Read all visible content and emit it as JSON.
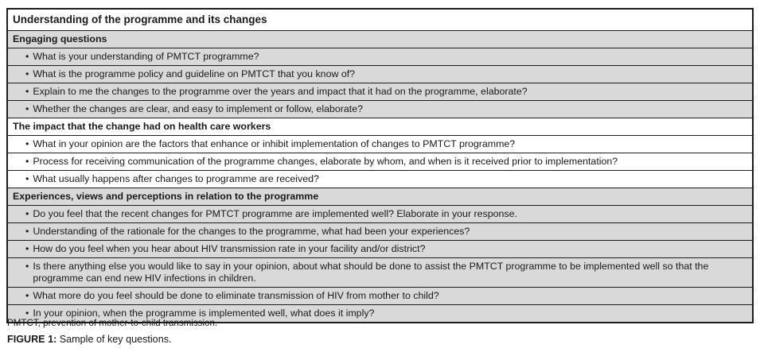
{
  "figure": {
    "title": "Understanding of the programme and its changes",
    "sections": [
      {
        "header": "Engaging questions",
        "shaded": true,
        "questions": [
          "What is your understanding of PMTCT programme?",
          "What is the programme policy and guideline on PMTCT that you know of?",
          "Explain to me the changes to the programme over the years and impact that it had on the programme, elaborate?",
          "Whether the changes are clear, and easy to implement or follow, elaborate?"
        ]
      },
      {
        "header": "The impact that the change had on health care workers",
        "shaded": false,
        "questions": [
          "What in your opinion are the factors that enhance or inhibit implementation of changes to PMTCT programme?",
          "Process for receiving communication of the programme changes, elaborate by whom, and when is it received prior to implementation?",
          "What usually happens after changes to programme are received?"
        ]
      },
      {
        "header": "Experiences, views and perceptions in relation to the programme",
        "shaded": true,
        "questions": [
          "Do you feel that the recent changes for PMTCT programme are implemented well? Elaborate in your response.",
          "Understanding of the rationale for the changes to the programme, what had been your experiences?",
          "How do you feel when you hear about HIV transmission rate in your facility and/or district?",
          "Is there anything else you would like to say in your opinion, about what should be done to assist the PMTCT programme to be implemented well so that the programme can end new HIV infections in children.",
          "What more do you feel should be done to eliminate transmission of HIV from mother to child?",
          "In your opinion, when the programme is implemented well, what does it imply?"
        ]
      }
    ],
    "bullet_glyph": "•",
    "footnote": "PMTCT, prevention of mother-to-child transmission.",
    "caption_label": "FIGURE 1:",
    "caption_text": " Sample of key questions.",
    "colors": {
      "shaded_row": "#d9d9d9",
      "border": "#1c1c1c",
      "text": "#1a1a1a"
    }
  }
}
